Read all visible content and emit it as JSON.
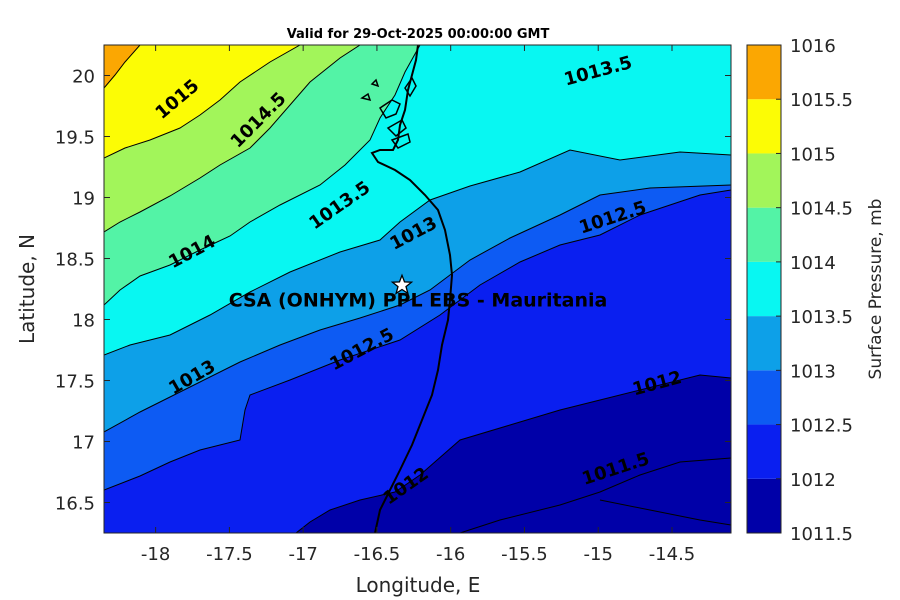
{
  "title": "Valid for 29-Oct-2025 00:00:00 GMT",
  "map": {
    "xlabel": "Longitude, E",
    "ylabel": "Latitude, N",
    "xlim": [
      -18.35,
      -14.1
    ],
    "ylim": [
      16.25,
      20.25
    ],
    "xticks": [
      {
        "value": -18,
        "label": "-18"
      },
      {
        "value": -17.5,
        "label": "-17.5"
      },
      {
        "value": -17,
        "label": "-17"
      },
      {
        "value": -16.5,
        "label": "-16.5"
      },
      {
        "value": -16,
        "label": "-16"
      },
      {
        "value": -15.5,
        "label": "-15.5"
      },
      {
        "value": -15,
        "label": "-15"
      },
      {
        "value": -14.5,
        "label": "-14.5"
      }
    ],
    "yticks": [
      {
        "value": 16.5,
        "label": "16.5"
      },
      {
        "value": 17,
        "label": "17"
      },
      {
        "value": 17.5,
        "label": "17.5"
      },
      {
        "value": 18,
        "label": "18"
      },
      {
        "value": 18.5,
        "label": "18.5"
      },
      {
        "value": 19,
        "label": "19"
      },
      {
        "value": 19.5,
        "label": "19.5"
      },
      {
        "value": 20,
        "label": "20"
      }
    ],
    "station": {
      "name": "CSA (ONHYM) PPL EBS  - Mauritania",
      "lon": -16.33,
      "lat": 18.28,
      "marker": "star-icon"
    },
    "contour_labels": [
      {
        "text": "1015",
        "lon": -17.85,
        "lat": 19.8,
        "angle": -40
      },
      {
        "text": "1014.5",
        "lon": -17.3,
        "lat": 19.63,
        "angle": -45
      },
      {
        "text": "1014",
        "lon": -17.75,
        "lat": 18.55,
        "angle": -28
      },
      {
        "text": "1013.5",
        "lon": -16.75,
        "lat": 18.93,
        "angle": -35
      },
      {
        "text": "1013",
        "lon": -16.25,
        "lat": 18.7,
        "angle": -28
      },
      {
        "text": "1013.5",
        "lon": -15.0,
        "lat": 20.03,
        "angle": -15
      },
      {
        "text": "1012.5",
        "lon": -14.9,
        "lat": 18.83,
        "angle": -18
      },
      {
        "text": "1013",
        "lon": -17.75,
        "lat": 17.52,
        "angle": -30
      },
      {
        "text": "1012.5",
        "lon": -16.6,
        "lat": 17.75,
        "angle": -28
      },
      {
        "text": "1012",
        "lon": -14.6,
        "lat": 17.47,
        "angle": -15
      },
      {
        "text": "1011.5",
        "lon": -14.88,
        "lat": 16.77,
        "angle": -18
      },
      {
        "text": "1012",
        "lon": -16.3,
        "lat": 16.63,
        "angle": -35
      }
    ]
  },
  "colorbar": {
    "label": "Surface Pressure, mb",
    "levels": [
      {
        "value": 1011.5,
        "label": "1011.5",
        "color": "#0000A8"
      },
      {
        "value": 1012,
        "label": "1012",
        "color": "#0A1FF0"
      },
      {
        "value": 1012.5,
        "label": "1012.5",
        "color": "#0D5BF3"
      },
      {
        "value": 1013,
        "label": "1013",
        "color": "#0DA0E8"
      },
      {
        "value": 1013.5,
        "label": "1013.5",
        "color": "#08F7F2"
      },
      {
        "value": 1014,
        "label": "1014",
        "color": "#53F3A6"
      },
      {
        "value": 1014.5,
        "label": "1014.5",
        "color": "#A2F55A"
      },
      {
        "value": 1015,
        "label": "1015",
        "color": "#FCFC05"
      },
      {
        "value": 1015.5,
        "label": "1015.5",
        "color": "#FBA702"
      },
      {
        "value": 1016,
        "label": "1016",
        "color": "#FE5B07"
      }
    ]
  }
}
